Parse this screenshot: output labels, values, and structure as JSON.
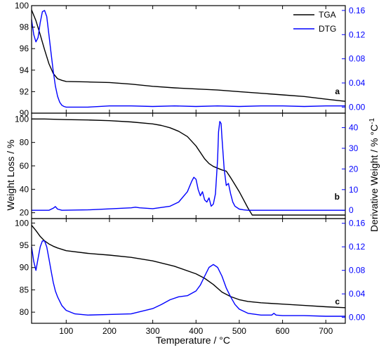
{
  "figure": {
    "xlabel": "Temperature / °C",
    "ylabel_left": "Weight Loss / %",
    "ylabel_right_main": "Derivative Weight / % °C",
    "ylabel_right_sup": "-1",
    "colors": {
      "tga": "#000000",
      "dtg": "#0000ff",
      "axis": "#000000"
    }
  },
  "chart_data": [
    {
      "type": "line",
      "panel_label": "a",
      "xlim": [
        20,
        745
      ],
      "x_ticks": [
        100,
        200,
        300,
        400,
        500,
        600,
        700
      ],
      "ylim_left": [
        90,
        100
      ],
      "yticks_left": [
        90,
        92,
        94,
        96,
        98,
        100
      ],
      "ylim_right": [
        -0.01,
        0.168
      ],
      "yticks_right": [
        0.0,
        0.04,
        0.08,
        0.12,
        0.16
      ],
      "legend": {
        "position": "top-right",
        "entries": [
          "TGA",
          "DTG"
        ]
      },
      "series": [
        {
          "name": "TGA",
          "axis": "left",
          "color": "#000000",
          "x": [
            20,
            30,
            40,
            50,
            60,
            70,
            80,
            90,
            100,
            150,
            200,
            250,
            300,
            350,
            400,
            450,
            500,
            550,
            600,
            650,
            700,
            745
          ],
          "y": [
            99.6,
            98.6,
            97.3,
            95.9,
            94.6,
            93.7,
            93.2,
            93.05,
            92.95,
            92.9,
            92.85,
            92.7,
            92.5,
            92.35,
            92.25,
            92.15,
            92.0,
            91.85,
            91.7,
            91.55,
            91.3,
            91.1
          ]
        },
        {
          "name": "DTG",
          "axis": "right",
          "color": "#0000ff",
          "x": [
            20,
            25,
            30,
            35,
            40,
            45,
            50,
            55,
            60,
            65,
            70,
            75,
            80,
            85,
            90,
            95,
            100,
            120,
            150,
            200,
            250,
            300,
            350,
            400,
            450,
            500,
            550,
            600,
            650,
            700,
            745
          ],
          "y": [
            0.145,
            0.12,
            0.108,
            0.115,
            0.14,
            0.158,
            0.16,
            0.15,
            0.12,
            0.09,
            0.06,
            0.035,
            0.018,
            0.008,
            0.003,
            0.001,
            0.0,
            0.0,
            0.0,
            0.002,
            0.002,
            0.001,
            0.002,
            0.001,
            0.002,
            0.001,
            0.002,
            0.002,
            0.001,
            0.002,
            0.002
          ]
        }
      ]
    },
    {
      "type": "line",
      "panel_label": "b",
      "xlim": [
        20,
        745
      ],
      "x_ticks": [
        100,
        200,
        300,
        400,
        500,
        600,
        700
      ],
      "ylim_left": [
        15,
        105
      ],
      "yticks_left": [
        20,
        40,
        60,
        80,
        100
      ],
      "ylim_right": [
        -4,
        47
      ],
      "yticks_right": [
        0,
        10,
        20,
        30,
        40
      ],
      "series": [
        {
          "name": "TGA",
          "axis": "left",
          "color": "#000000",
          "x": [
            20,
            50,
            100,
            150,
            200,
            250,
            300,
            320,
            340,
            360,
            380,
            400,
            420,
            430,
            440,
            450,
            460,
            470,
            480,
            490,
            500,
            510,
            520,
            530,
            600,
            700,
            745
          ],
          "y": [
            100,
            100,
            99.5,
            99.2,
            98.6,
            97.5,
            95.8,
            94.5,
            92.5,
            89.5,
            85,
            77,
            66,
            62,
            59.5,
            58,
            56.5,
            55.5,
            50,
            44,
            38,
            31,
            24,
            18,
            18,
            18,
            18
          ]
        },
        {
          "name": "DTG",
          "axis": "right",
          "color": "#0000ff",
          "x": [
            20,
            60,
            70,
            75,
            80,
            90,
            150,
            250,
            260,
            270,
            300,
            340,
            360,
            380,
            390,
            395,
            400,
            405,
            410,
            415,
            420,
            425,
            430,
            435,
            440,
            445,
            450,
            452,
            455,
            458,
            460,
            465,
            470,
            475,
            480,
            485,
            490,
            500,
            510,
            520,
            600,
            700,
            745
          ],
          "y": [
            0,
            0,
            1,
            1.8,
            0.6,
            0,
            0.2,
            1.2,
            1.5,
            1.2,
            0.8,
            2,
            4,
            9,
            14,
            16,
            15,
            10,
            7,
            9,
            5,
            4,
            6,
            2,
            3,
            8,
            25,
            38,
            43,
            42,
            35,
            20,
            12,
            13,
            8,
            4,
            2,
            0.6,
            0.2,
            0,
            0,
            0,
            0
          ]
        }
      ]
    },
    {
      "type": "line",
      "panel_label": "c",
      "xlim": [
        20,
        745
      ],
      "x_ticks": [
        100,
        200,
        300,
        400,
        500,
        600,
        700
      ],
      "x_tick_labels": [
        "100",
        "200",
        "300",
        "400",
        "500",
        "600",
        "700"
      ],
      "ylim_left": [
        77.5,
        101
      ],
      "yticks_left": [
        80,
        85,
        90,
        95,
        100
      ],
      "ylim_right": [
        -0.01,
        0.168
      ],
      "yticks_right": [
        0.0,
        0.04,
        0.08,
        0.12,
        0.16
      ],
      "series": [
        {
          "name": "TGA",
          "axis": "left",
          "color": "#000000",
          "x": [
            20,
            30,
            40,
            50,
            60,
            70,
            80,
            100,
            150,
            200,
            250,
            300,
            350,
            400,
            420,
            440,
            460,
            480,
            500,
            520,
            550,
            600,
            650,
            700,
            745
          ],
          "y": [
            99.5,
            98.3,
            97,
            96,
            95.3,
            94.8,
            94.4,
            93.8,
            93.2,
            92.8,
            92.3,
            91.5,
            90.3,
            88.6,
            87.6,
            86.2,
            84.5,
            83.5,
            82.8,
            82.4,
            82.1,
            81.8,
            81.5,
            81.2,
            81.0
          ]
        },
        {
          "name": "DTG",
          "axis": "right",
          "color": "#0000ff",
          "x": [
            20,
            25,
            30,
            35,
            40,
            45,
            50,
            55,
            60,
            65,
            70,
            75,
            80,
            90,
            100,
            120,
            150,
            200,
            250,
            300,
            320,
            340,
            360,
            380,
            400,
            410,
            420,
            430,
            440,
            450,
            460,
            470,
            480,
            490,
            500,
            520,
            550,
            575,
            580,
            585,
            600,
            650,
            700,
            745
          ],
          "y": [
            0.12,
            0.095,
            0.08,
            0.1,
            0.12,
            0.13,
            0.13,
            0.12,
            0.1,
            0.08,
            0.06,
            0.045,
            0.035,
            0.02,
            0.012,
            0.006,
            0.004,
            0.005,
            0.006,
            0.015,
            0.022,
            0.03,
            0.035,
            0.037,
            0.045,
            0.055,
            0.07,
            0.085,
            0.09,
            0.085,
            0.07,
            0.05,
            0.035,
            0.022,
            0.014,
            0.007,
            0.004,
            0.004,
            0.007,
            0.004,
            0.003,
            0.003,
            0.002,
            0.002
          ]
        }
      ]
    }
  ]
}
